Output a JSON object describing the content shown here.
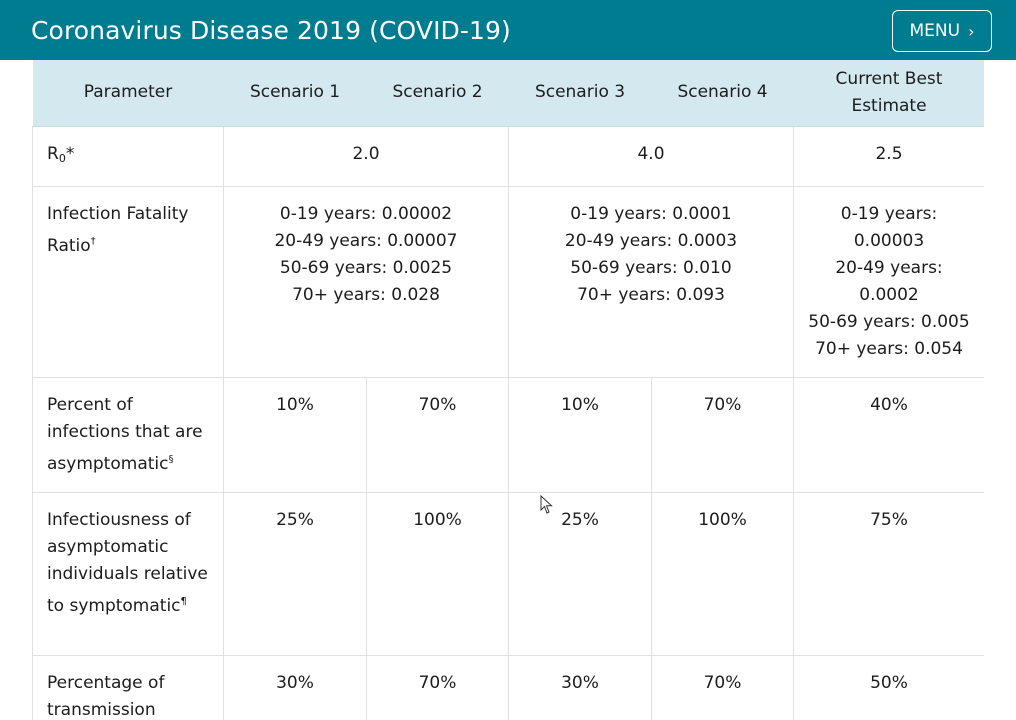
{
  "header": {
    "title": "Coronavirus Disease 2019 (COVID-19)",
    "menu_label": "MENU"
  },
  "table": {
    "columns": [
      "Parameter",
      "Scenario 1",
      "Scenario 2",
      "Scenario 3",
      "Scenario 4",
      "Current Best Estimate"
    ],
    "rows": {
      "r0": {
        "label": "R",
        "label_sub": "0",
        "label_suffix": "*",
        "s12": "2.0",
        "s34": "4.0",
        "best": "2.5"
      },
      "ifr": {
        "label": "Infection Fatality Ratio",
        "label_sup": "†",
        "s12": [
          "0-19 years: 0.00002",
          "20-49 years: 0.00007",
          "50-69 years: 0.0025",
          "70+ years: 0.028"
        ],
        "s34": [
          "0-19 years: 0.0001",
          "20-49 years: 0.0003",
          "50-69 years: 0.010",
          "70+ years: 0.093"
        ],
        "best": [
          "0-19 years:",
          "0.00003",
          "20-49 years:",
          "0.0002",
          "50-69 years: 0.005",
          "70+ years: 0.054"
        ]
      },
      "asym": {
        "label": "Percent of infections that are asymptomatic",
        "label_sup": "§",
        "values": [
          "10%",
          "70%",
          "10%",
          "70%",
          "40%"
        ]
      },
      "infectiousness": {
        "label": "Infectiousness of asymptomatic individuals relative to symptomatic",
        "label_sup": "¶",
        "values": [
          "25%",
          "100%",
          "25%",
          "100%",
          "75%"
        ]
      },
      "transmission": {
        "label": "Percentage of transmission",
        "values": [
          "30%",
          "70%",
          "30%",
          "70%",
          "50%"
        ]
      }
    }
  }
}
